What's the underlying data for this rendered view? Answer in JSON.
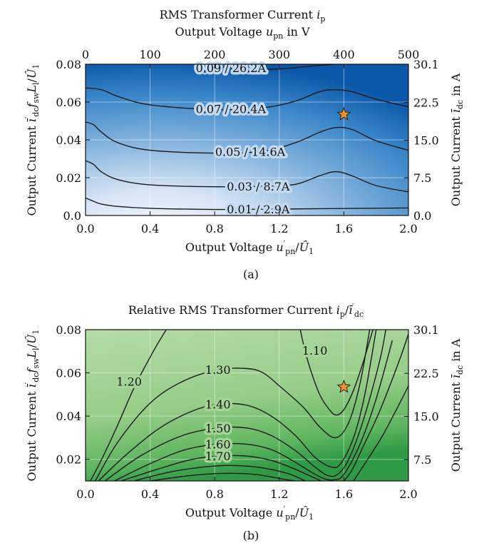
{
  "chart_data": [
    {
      "type": "contour",
      "panel_label": "(a)",
      "title": "RMS Transformer Current i_p",
      "top_axis_label": "Output Voltage u_pn in V",
      "xlabel": "Output Voltage u'_pn/Û_1",
      "ylabel": "Output Current ī'_dc f_sw L_l/Û_1",
      "right_axis_label": "Output Current ī_dc in A",
      "xlim": [
        0,
        2.0
      ],
      "ylim": [
        0,
        0.08
      ],
      "x_ticks": [
        "0.0",
        "0.4",
        "0.8",
        "1.2",
        "1.6",
        "2.0"
      ],
      "y_ticks": [
        "0.0",
        "0.02",
        "0.04",
        "0.06",
        "0.08"
      ],
      "top_ticks": [
        "0",
        "100",
        "200",
        "300",
        "400",
        "500"
      ],
      "right_ticks": [
        "0.0",
        "7.5",
        "15.0",
        "22.5",
        "30.1"
      ],
      "grid": true,
      "colormap": [
        "#eef3fb",
        "#0a55a8"
      ],
      "contours": [
        {
          "label": "0.01 / 2.9A",
          "label_x": 1.07,
          "points": [
            [
              0,
              0.0093
            ],
            [
              0.05,
              0.0075
            ],
            [
              0.1,
              0.006
            ],
            [
              0.2,
              0.0048
            ],
            [
              0.4,
              0.0038
            ],
            [
              0.8,
              0.0032
            ],
            [
              1.2,
              0.0034
            ],
            [
              1.6,
              0.0037
            ],
            [
              2.0,
              0.004
            ]
          ]
        },
        {
          "label": "0.03 / 8.7A",
          "label_x": 1.07,
          "points": [
            [
              0,
              0.029
            ],
            [
              0.05,
              0.027
            ],
            [
              0.1,
              0.023
            ],
            [
              0.2,
              0.019
            ],
            [
              0.4,
              0.0162
            ],
            [
              0.8,
              0.0152
            ],
            [
              1.1,
              0.0155
            ],
            [
              1.3,
              0.0165
            ],
            [
              1.45,
              0.021
            ],
            [
              1.55,
              0.0232
            ],
            [
              1.65,
              0.021
            ],
            [
              1.8,
              0.0158
            ],
            [
              2.0,
              0.0125
            ]
          ]
        },
        {
          "label": "0.05 / 14.6A",
          "label_x": 1.02,
          "points": [
            [
              0,
              0.0495
            ],
            [
              0.05,
              0.048
            ],
            [
              0.1,
              0.044
            ],
            [
              0.2,
              0.0385
            ],
            [
              0.4,
              0.0345
            ],
            [
              0.8,
              0.033
            ],
            [
              1.1,
              0.034
            ],
            [
              1.3,
              0.0385
            ],
            [
              1.45,
              0.044
            ],
            [
              1.55,
              0.0465
            ],
            [
              1.65,
              0.0455
            ],
            [
              1.8,
              0.0395
            ],
            [
              2.0,
              0.0345
            ]
          ]
        },
        {
          "label": "0.07 / 20.4A",
          "label_x": 0.9,
          "points": [
            [
              0,
              0.0675
            ],
            [
              0.1,
              0.0665
            ],
            [
              0.2,
              0.063
            ],
            [
              0.4,
              0.0585
            ],
            [
              0.8,
              0.056
            ],
            [
              1.1,
              0.057
            ],
            [
              1.3,
              0.0605
            ],
            [
              1.45,
              0.0655
            ],
            [
              1.55,
              0.0665
            ],
            [
              1.65,
              0.0655
            ],
            [
              1.8,
              0.0615
            ],
            [
              2.0,
              0.0575
            ]
          ]
        },
        {
          "label": "0.09 / 26.2A",
          "label_x": 0.9,
          "points": [
            [
              0.8,
              0.08
            ],
            [
              0.85,
              0.0785
            ],
            [
              1.0,
              0.0775
            ],
            [
              1.2,
              0.0775
            ],
            [
              1.4,
              0.079
            ],
            [
              1.55,
              0.08
            ]
          ]
        }
      ],
      "marker": {
        "x": 1.6,
        "y": 0.0535,
        "symbol": "star",
        "color": "#f2922a"
      }
    },
    {
      "type": "contour",
      "panel_label": "(b)",
      "title": "Relative RMS Transformer Current i_p/ī'_dc",
      "xlabel": "Output Voltage u'_pn/Û_1",
      "ylabel": "Output Current ī'_dc f_sw L_l/Û_1",
      "right_axis_label": "Output Current ī_dc in A",
      "xlim": [
        0,
        2.0
      ],
      "ylim": [
        0.01,
        0.08
      ],
      "x_ticks": [
        "0.0",
        "0.4",
        "0.8",
        "1.2",
        "1.6",
        "2.0"
      ],
      "y_ticks": [
        "0.02",
        "0.04",
        "0.06",
        "0.08"
      ],
      "right_ticks": [
        "7.5",
        "15.0",
        "22.5",
        "30.1"
      ],
      "grid": true,
      "colormap": [
        "#b9dfae",
        "#2f9a45"
      ],
      "contours": [
        {
          "label": "1.10",
          "label_x": 1.42,
          "label_y": 0.0705,
          "points": [
            [
              1.33,
              0.08
            ],
            [
              1.36,
              0.07
            ],
            [
              1.4,
              0.06
            ],
            [
              1.45,
              0.05
            ],
            [
              1.5,
              0.044
            ],
            [
              1.55,
              0.0405
            ],
            [
              1.6,
              0.043
            ],
            [
              1.66,
              0.052
            ],
            [
              1.72,
              0.065
            ],
            [
              1.78,
              0.08
            ]
          ]
        },
        {
          "label": "1.20",
          "label_x": 0.27,
          "label_y": 0.056,
          "points": [
            [
              0.03,
              0.01
            ],
            [
              0.1,
              0.02
            ],
            [
              0.2,
              0.036
            ],
            [
              0.3,
              0.053
            ],
            [
              0.42,
              0.07
            ],
            [
              0.5,
              0.08
            ]
          ]
        },
        {
          "label": "1.30",
          "label_x": 0.82,
          "label_y": 0.0615,
          "points": [
            [
              0.06,
              0.01
            ],
            [
              0.2,
              0.028
            ],
            [
              0.4,
              0.046
            ],
            [
              0.6,
              0.056
            ],
            [
              0.82,
              0.0615
            ],
            [
              1.0,
              0.062
            ],
            [
              1.1,
              0.06
            ],
            [
              1.2,
              0.054
            ],
            [
              1.35,
              0.044
            ],
            [
              1.45,
              0.035
            ],
            [
              1.55,
              0.03
            ],
            [
              1.63,
              0.037
            ],
            [
              1.7,
              0.055
            ],
            [
              1.76,
              0.08
            ]
          ]
        },
        {
          "label": "1.40",
          "label_x": 0.82,
          "label_y": 0.0455,
          "points": [
            [
              0.08,
              0.01
            ],
            [
              0.25,
              0.022
            ],
            [
              0.45,
              0.034
            ],
            [
              0.65,
              0.042
            ],
            [
              0.82,
              0.0455
            ],
            [
              1.0,
              0.045
            ],
            [
              1.15,
              0.04
            ],
            [
              1.3,
              0.031
            ],
            [
              1.42,
              0.021
            ],
            [
              1.52,
              0.0165
            ],
            [
              1.58,
              0.018
            ],
            [
              1.66,
              0.03
            ],
            [
              1.73,
              0.05
            ],
            [
              1.8,
              0.08
            ]
          ]
        },
        {
          "label": "1.50",
          "label_x": 0.82,
          "label_y": 0.0345,
          "points": [
            [
              0.12,
              0.01
            ],
            [
              0.35,
              0.022
            ],
            [
              0.6,
              0.031
            ],
            [
              0.82,
              0.0345
            ],
            [
              1.0,
              0.0345
            ],
            [
              1.15,
              0.031
            ],
            [
              1.3,
              0.024
            ],
            [
              1.42,
              0.0165
            ],
            [
              1.5,
              0.0125
            ],
            [
              1.56,
              0.013
            ],
            [
              1.63,
              0.02
            ],
            [
              1.72,
              0.038
            ],
            [
              1.82,
              0.065
            ],
            [
              1.86,
              0.08
            ]
          ]
        },
        {
          "label": "1.60",
          "label_x": 0.82,
          "label_y": 0.027,
          "points": [
            [
              0.18,
              0.01
            ],
            [
              0.4,
              0.018
            ],
            [
              0.62,
              0.0245
            ],
            [
              0.82,
              0.027
            ],
            [
              1.0,
              0.027
            ],
            [
              1.15,
              0.0245
            ],
            [
              1.28,
              0.0195
            ],
            [
              1.4,
              0.014
            ],
            [
              1.48,
              0.011
            ],
            [
              1.54,
              0.0105
            ],
            [
              1.6,
              0.013
            ],
            [
              1.7,
              0.027
            ],
            [
              1.8,
              0.048
            ],
            [
              1.9,
              0.075
            ]
          ]
        },
        {
          "label": "1.70",
          "label_x": 0.82,
          "label_y": 0.0215,
          "points": [
            [
              0.22,
              0.01
            ],
            [
              0.45,
              0.0155
            ],
            [
              0.65,
              0.0198
            ],
            [
              0.82,
              0.0215
            ],
            [
              1.0,
              0.0215
            ],
            [
              1.15,
              0.0195
            ],
            [
              1.28,
              0.016
            ],
            [
              1.4,
              0.012
            ],
            [
              1.46,
              0.01
            ]
          ]
        },
        {
          "label": "",
          "points": [
            [
              0.3,
              0.01
            ],
            [
              0.55,
              0.0145
            ],
            [
              0.82,
              0.017
            ],
            [
              1.05,
              0.0165
            ],
            [
              1.25,
              0.0135
            ],
            [
              1.36,
              0.01
            ]
          ]
        },
        {
          "label": "",
          "points": [
            [
              0.4,
              0.01
            ],
            [
              0.65,
              0.0125
            ],
            [
              0.85,
              0.0135
            ],
            [
              1.05,
              0.013
            ],
            [
              1.25,
              0.0105
            ],
            [
              1.3,
              0.01
            ]
          ]
        },
        {
          "label": "",
          "points": [
            [
              1.6,
              0.01
            ],
            [
              1.65,
              0.015
            ],
            [
              1.72,
              0.026
            ],
            [
              1.82,
              0.042
            ],
            [
              1.94,
              0.065
            ],
            [
              2.0,
              0.078
            ]
          ]
        },
        {
          "label": "",
          "points": [
            [
              1.66,
              0.01
            ],
            [
              1.73,
              0.018
            ],
            [
              1.84,
              0.031
            ],
            [
              1.96,
              0.048
            ],
            [
              2.0,
              0.054
            ]
          ]
        }
      ],
      "marker": {
        "x": 1.6,
        "y": 0.0535,
        "symbol": "star",
        "color": "#f2922a"
      }
    }
  ]
}
